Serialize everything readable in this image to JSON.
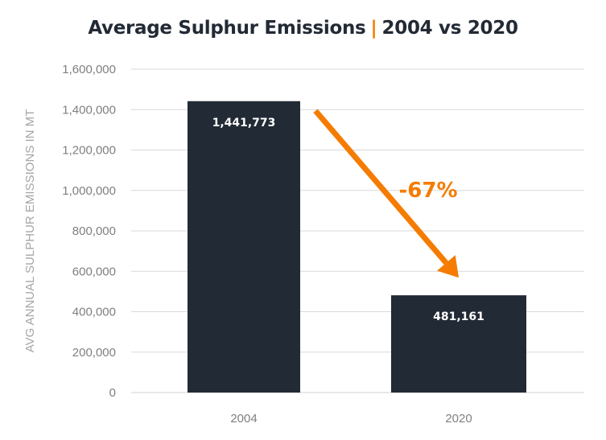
{
  "chart_data": {
    "type": "bar",
    "title": "Average Sulphur Emissions",
    "title_separator": "|",
    "subtitle": "2004 vs 2020",
    "xlabel": "",
    "ylabel": "AVG ANNUAL SULPHUR EMISSIONS IN MT",
    "categories": [
      "2004",
      "2020"
    ],
    "values": [
      1441773,
      481161
    ],
    "data_labels": [
      "1,441,773",
      "481,161"
    ],
    "ylim": [
      0,
      1600000
    ],
    "yticks": [
      0,
      200000,
      400000,
      600000,
      800000,
      1000000,
      1200000,
      1400000,
      1600000
    ],
    "ytick_labels": [
      "0",
      "200,000",
      "400,000",
      "600,000",
      "800,000",
      "1,000,000",
      "1,200,000",
      "1,400,000",
      "1,600,000"
    ],
    "grid": true,
    "legend": "none",
    "annotations": [
      {
        "type": "arrow",
        "from_category": "2004",
        "to_category": "2020",
        "label": "-67%"
      }
    ],
    "colors": {
      "bar": "#222a35",
      "accent": "#f57c00",
      "grid": "#d9d9d9",
      "tick_text": "#7f7f7f",
      "axis_title": "#a6a6a6"
    }
  }
}
